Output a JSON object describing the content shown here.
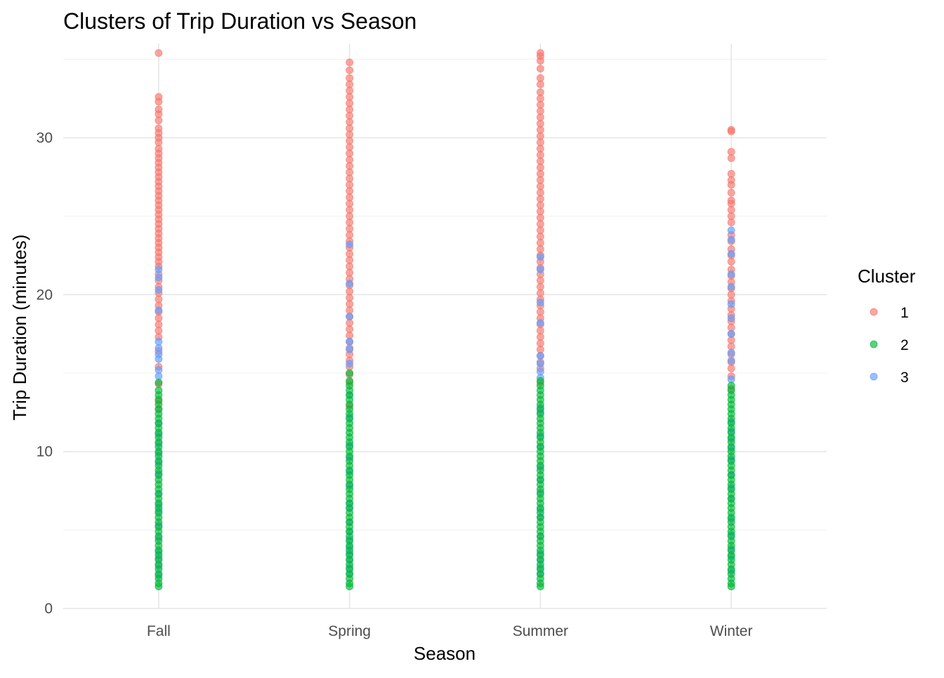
{
  "chart_data": {
    "type": "scatter",
    "title": "Clusters of Trip Duration vs Season",
    "xlabel": "Season",
    "ylabel": "Trip Duration (minutes)",
    "categories": [
      "Fall",
      "Spring",
      "Summer",
      "Winter"
    ],
    "ylim": [
      0,
      36
    ],
    "yticks": [
      0,
      10,
      20,
      30
    ],
    "grid": true,
    "legend": {
      "title": "Cluster",
      "placement": "right"
    },
    "series": [
      {
        "name": "1",
        "color": "#F8766D",
        "values": [
          [
            35.4,
            32.6,
            32.3,
            31.8,
            31.5,
            31.1,
            30.6,
            30.3,
            30.0,
            29.7,
            29.3,
            29.0,
            28.7,
            28.4,
            28.1,
            27.8,
            27.5,
            27.2,
            26.9,
            26.6,
            26.3,
            26.0,
            25.7,
            25.4,
            25.1,
            24.8,
            24.5,
            24.2,
            23.9,
            23.6,
            23.3,
            23.0,
            22.7,
            22.4,
            22.1,
            21.8,
            21.3,
            20.9,
            20.5,
            20.1,
            19.7,
            19.3,
            18.9,
            18.5,
            18.1,
            17.7,
            17.3,
            16.4,
            15.4,
            14.3,
            13.2,
            12.7
          ],
          [
            34.8,
            34.3,
            33.8,
            33.4,
            33.0,
            32.6,
            32.2,
            31.8,
            31.4,
            31.0,
            30.6,
            30.2,
            29.8,
            29.4,
            29.0,
            28.6,
            28.2,
            27.8,
            27.4,
            27.0,
            26.6,
            26.2,
            25.8,
            25.4,
            25.0,
            24.6,
            24.2,
            23.8,
            23.4,
            23.0,
            22.6,
            22.2,
            21.8,
            21.4,
            21.0,
            20.6,
            20.2,
            19.8,
            19.4,
            19.0,
            18.6,
            18.2,
            17.8,
            17.4,
            17.0,
            16.6,
            16.2,
            15.8,
            15.4,
            14.9,
            14.4,
            12.9
          ],
          [
            35.4,
            35.2,
            34.9,
            34.4,
            33.8,
            33.4,
            32.9,
            32.5,
            32.1,
            31.7,
            31.3,
            30.9,
            30.5,
            30.1,
            29.7,
            29.3,
            28.9,
            28.5,
            28.1,
            27.7,
            27.3,
            26.9,
            26.5,
            26.1,
            25.7,
            25.3,
            24.9,
            24.5,
            24.1,
            23.7,
            23.3,
            22.9,
            22.5,
            22.1,
            21.7,
            21.3,
            20.9,
            20.5,
            20.1,
            19.7,
            19.3,
            18.9,
            18.5,
            18.1,
            17.7,
            17.3,
            16.9,
            16.5,
            16.1,
            15.7,
            15.3,
            14.4
          ],
          [
            30.5,
            30.4,
            29.1,
            28.7,
            27.7,
            27.3,
            27.0,
            26.5,
            26.0,
            25.8,
            25.4,
            25.0,
            24.6,
            23.8,
            23.4,
            22.9,
            22.5,
            22.1,
            21.6,
            21.2,
            20.8,
            20.4,
            20.0,
            19.6,
            19.1,
            18.7,
            18.3,
            17.9,
            17.5,
            17.1,
            16.7,
            16.2,
            15.7,
            15.3,
            14.8,
            14.0
          ]
        ]
      },
      {
        "name": "2",
        "color": "#00BA38",
        "values": [
          [
            14.4,
            13.9,
            13.6,
            13.3,
            13.0,
            12.7,
            12.4,
            12.1,
            11.8,
            11.5,
            11.2,
            10.9,
            10.6,
            10.3,
            10.0,
            9.7,
            9.4,
            9.1,
            8.8,
            8.5,
            8.2,
            7.9,
            7.6,
            7.3,
            7.0,
            6.7,
            6.4,
            6.1,
            5.8,
            5.5,
            5.2,
            4.9,
            4.6,
            4.3,
            4.0,
            3.7,
            3.4,
            3.1,
            2.8,
            2.5,
            2.2,
            1.9,
            1.6,
            1.4
          ],
          [
            15.0,
            14.5,
            14.2,
            13.9,
            13.6,
            13.3,
            13.0,
            12.7,
            12.4,
            12.1,
            11.8,
            11.5,
            11.2,
            10.9,
            10.6,
            10.3,
            10.0,
            9.7,
            9.4,
            9.1,
            8.8,
            8.5,
            8.2,
            7.9,
            7.6,
            7.3,
            7.0,
            6.7,
            6.4,
            6.1,
            5.8,
            5.5,
            5.2,
            4.9,
            4.6,
            4.3,
            4.0,
            3.7,
            3.4,
            3.1,
            2.8,
            2.5,
            2.2,
            1.9,
            1.6,
            1.4
          ],
          [
            14.5,
            14.2,
            13.9,
            13.6,
            13.3,
            13.0,
            12.7,
            12.4,
            12.1,
            11.8,
            11.5,
            11.2,
            10.9,
            10.6,
            10.3,
            10.0,
            9.7,
            9.4,
            9.1,
            8.8,
            8.5,
            8.2,
            7.9,
            7.6,
            7.3,
            7.0,
            6.7,
            6.4,
            6.1,
            5.8,
            5.5,
            5.2,
            4.9,
            4.6,
            4.3,
            4.0,
            3.7,
            3.4,
            3.1,
            2.8,
            2.5,
            2.2,
            1.9,
            1.6,
            1.4
          ],
          [
            14.2,
            13.9,
            13.6,
            13.3,
            13.0,
            12.7,
            12.4,
            12.1,
            11.8,
            11.5,
            11.2,
            10.9,
            10.6,
            10.3,
            10.0,
            9.7,
            9.4,
            9.1,
            8.8,
            8.5,
            8.2,
            7.9,
            7.6,
            7.3,
            7.0,
            6.7,
            6.4,
            6.1,
            5.8,
            5.5,
            5.2,
            4.9,
            4.6,
            4.3,
            4.0,
            3.7,
            3.4,
            3.1,
            2.8,
            2.5,
            2.2,
            1.9,
            1.6,
            1.4
          ]
        ]
      },
      {
        "name": "3",
        "color": "#619CFF",
        "values": [
          [
            21.6,
            21.1,
            20.3,
            19.0,
            17.0,
            16.6,
            16.2,
            15.9,
            15.2,
            14.8,
            11.8,
            11.1,
            10.5,
            9.9,
            9.3,
            8.6,
            7.3,
            6.6,
            6.2,
            5.3,
            4.5,
            3.6,
            3.2,
            2.7,
            2.1
          ],
          [
            23.2,
            20.7,
            18.6,
            17.0,
            16.5,
            15.6,
            13.6,
            12.2,
            10.4,
            9.6,
            8.7,
            7.8,
            6.7,
            6.4,
            5.5,
            4.9,
            4.4,
            3.9,
            3.5,
            3.1,
            2.6,
            2.2
          ],
          [
            22.4,
            21.6,
            19.5,
            18.2,
            16.1,
            15.6,
            15.1,
            14.7,
            12.8,
            12.5,
            11.0,
            10.3,
            9.0,
            8.2,
            7.4,
            6.3,
            5.8,
            4.6,
            3.5,
            3.1,
            2.6,
            2.2
          ],
          [
            24.1,
            23.5,
            22.6,
            21.3,
            20.5,
            19.4,
            18.5,
            17.5,
            16.3,
            15.8,
            14.6,
            11.9,
            11.3,
            10.8,
            10.2,
            9.5,
            8.5,
            7.7,
            7.0,
            5.7,
            4.7,
            3.8,
            3.3,
            2.4
          ]
        ]
      }
    ]
  }
}
